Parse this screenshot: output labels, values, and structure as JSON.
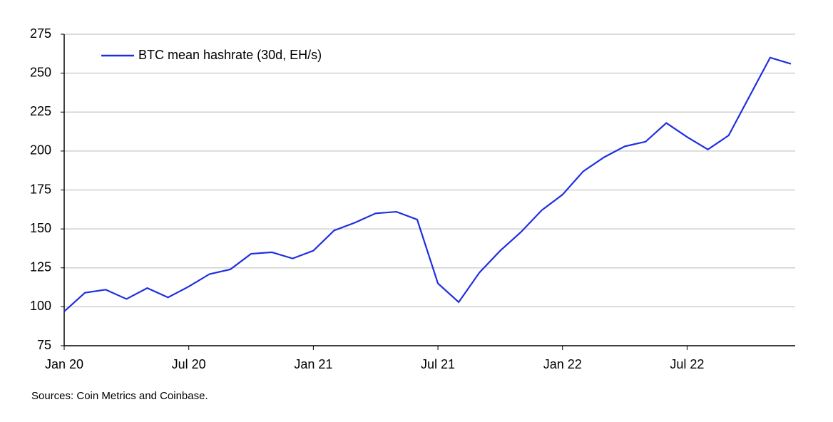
{
  "chart_data": {
    "type": "line",
    "x": [
      "2020-01",
      "2020-02",
      "2020-03",
      "2020-04",
      "2020-05",
      "2020-06",
      "2020-07",
      "2020-08",
      "2020-09",
      "2020-10",
      "2020-11",
      "2020-12",
      "2021-01",
      "2021-02",
      "2021-03",
      "2021-04",
      "2021-05",
      "2021-06",
      "2021-07",
      "2021-08",
      "2021-09",
      "2021-10",
      "2021-11",
      "2021-12",
      "2022-01",
      "2022-02",
      "2022-03",
      "2022-04",
      "2022-05",
      "2022-06",
      "2022-07",
      "2022-08",
      "2022-09",
      "2022-10",
      "2022-11",
      "2022-12"
    ],
    "series": [
      {
        "name": "BTC mean hashrate (30d, EH/s)",
        "color": "#1f2fe0",
        "values": [
          97,
          109,
          111,
          105,
          112,
          106,
          113,
          121,
          124,
          134,
          135,
          131,
          136,
          149,
          154,
          160,
          161,
          156,
          115,
          103,
          122,
          136,
          148,
          162,
          172,
          187,
          196,
          203,
          206,
          218,
          209,
          201,
          210,
          235,
          260,
          256
        ]
      }
    ],
    "xlim": [
      "2020-01",
      "2022-12"
    ],
    "xticks": [
      {
        "value": "2020-01",
        "label": "Jan 20"
      },
      {
        "value": "2020-07",
        "label": "Jul 20"
      },
      {
        "value": "2021-01",
        "label": "Jan 21"
      },
      {
        "value": "2021-07",
        "label": "Jul 21"
      },
      {
        "value": "2022-01",
        "label": "Jan 22"
      },
      {
        "value": "2022-07",
        "label": "Jul 22"
      }
    ],
    "ylim": [
      75,
      275
    ],
    "yticks": [
      75,
      100,
      125,
      150,
      175,
      200,
      225,
      250,
      275
    ],
    "grid": true,
    "legend": "top-left",
    "source": "Sources: Coin Metrics and Coinbase."
  }
}
